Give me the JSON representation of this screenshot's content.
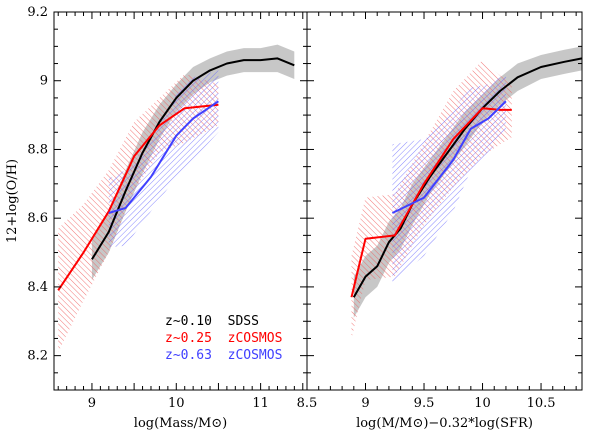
{
  "chart_data": [
    {
      "type": "line",
      "panel": "left",
      "xlabel": "log(Mass/M⊙)",
      "ylabel": "12+log(O/H)",
      "xlim": [
        8.55,
        11.55
      ],
      "ylim": [
        8.1,
        9.2
      ],
      "xticks": [
        "9",
        "10",
        "11"
      ],
      "yticks": [
        "8.2",
        "8.4",
        "8.6",
        "8.8",
        "9",
        "9.2"
      ],
      "legend": {
        "placement": "bottom-right",
        "entries": [
          {
            "name": "z~0.10  SDSS",
            "color": "#000000"
          },
          {
            "name": "z~0.25  zCOSMOS",
            "color": "#ff0000"
          },
          {
            "name": "z~0.63  zCOSMOS",
            "color": "#4040ff"
          }
        ]
      },
      "series": [
        {
          "color": "#000000",
          "x": [
            9.0,
            9.2,
            9.4,
            9.6,
            9.8,
            10.0,
            10.2,
            10.4,
            10.6,
            10.8,
            11.0,
            11.2,
            11.4
          ],
          "y": [
            8.48,
            8.56,
            8.68,
            8.79,
            8.88,
            8.95,
            9.0,
            9.03,
            9.05,
            9.06,
            9.06,
            9.065,
            9.045
          ],
          "band": [
            0.06,
            0.06,
            0.06,
            0.06,
            0.05,
            0.04,
            0.04,
            0.035,
            0.035,
            0.035,
            0.035,
            0.04,
            0.04
          ]
        },
        {
          "color": "#ff0000",
          "x": [
            8.6,
            8.9,
            9.2,
            9.5,
            9.8,
            10.1,
            10.5
          ],
          "y": [
            8.39,
            8.5,
            8.62,
            8.78,
            8.87,
            8.92,
            8.93
          ],
          "band": [
            0.18,
            0.14,
            0.12,
            0.1,
            0.08,
            0.1,
            0.06
          ]
        },
        {
          "color": "#4040ff",
          "x": [
            9.2,
            9.4,
            9.7,
            10.0,
            10.2,
            10.5
          ],
          "y": [
            8.615,
            8.63,
            8.72,
            8.84,
            8.89,
            8.94
          ],
          "band": [
            0.1,
            0.11,
            0.1,
            0.12,
            0.12,
            0.09
          ]
        }
      ]
    },
    {
      "type": "line",
      "panel": "right",
      "xlabel": "log(M/M⊙)−0.32*log(SFR)",
      "ylabel": "",
      "xlim": [
        8.5,
        10.85
      ],
      "ylim": [
        8.1,
        9.2
      ],
      "xticks": [
        "8.5",
        "9",
        "9.5",
        "10",
        "10.5"
      ],
      "yticks": [],
      "series": [
        {
          "color": "#000000",
          "x": [
            8.9,
            9.0,
            9.1,
            9.2,
            9.3,
            9.4,
            9.55,
            9.7,
            9.85,
            10.0,
            10.15,
            10.3,
            10.5,
            10.7,
            10.85
          ],
          "y": [
            8.37,
            8.43,
            8.46,
            8.53,
            8.57,
            8.64,
            8.72,
            8.79,
            8.86,
            8.92,
            8.97,
            9.01,
            9.04,
            9.055,
            9.065
          ],
          "band": [
            0.06,
            0.06,
            0.06,
            0.06,
            0.06,
            0.06,
            0.05,
            0.05,
            0.05,
            0.04,
            0.04,
            0.04,
            0.035,
            0.035,
            0.035
          ]
        },
        {
          "color": "#ff0000",
          "x": [
            8.88,
            8.95,
            9.0,
            9.25,
            9.5,
            9.75,
            10.0,
            10.15,
            10.25
          ],
          "y": [
            8.37,
            8.47,
            8.54,
            8.55,
            8.7,
            8.83,
            8.92,
            8.915,
            8.915
          ],
          "band": [
            0.12,
            0.12,
            0.12,
            0.12,
            0.12,
            0.14,
            0.14,
            0.1,
            0.08
          ]
        },
        {
          "color": "#4040ff",
          "x": [
            9.23,
            9.5,
            9.75,
            9.9,
            10.05,
            10.2
          ],
          "y": [
            8.615,
            8.66,
            8.77,
            8.86,
            8.89,
            8.94
          ],
          "band": [
            0.2,
            0.17,
            0.15,
            0.12,
            0.1,
            0.08
          ]
        }
      ]
    }
  ]
}
